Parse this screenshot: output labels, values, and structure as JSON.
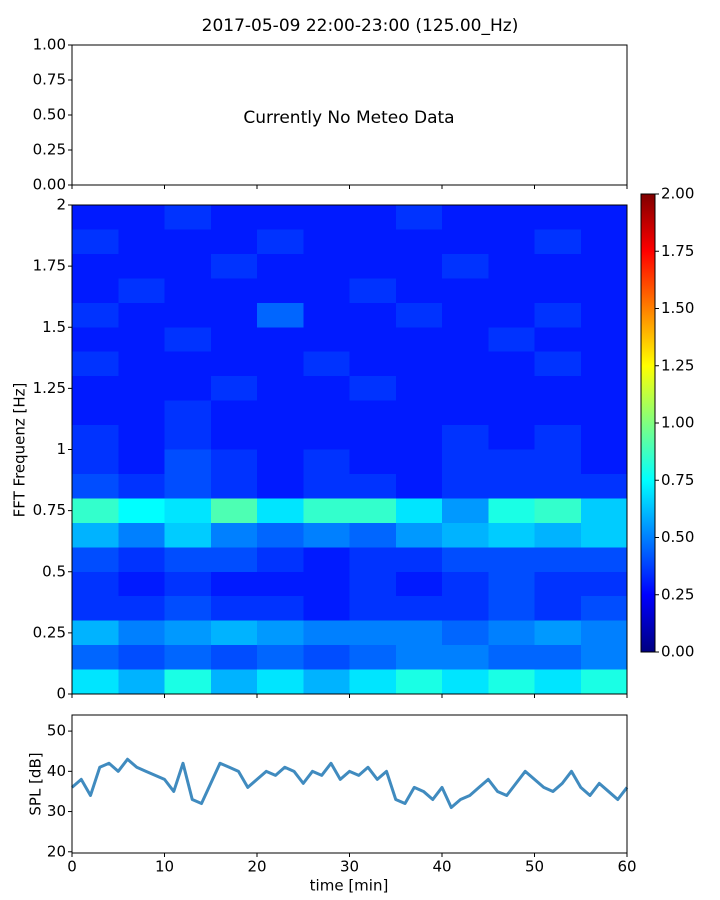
{
  "chart_data": [
    {
      "type": "empty",
      "title": "2017-05-09 22:00-23:00 (125.00_Hz)",
      "annotation": "Currently No Meteo Data",
      "ylim": [
        0,
        1
      ],
      "yticks": [
        {
          "value": 0,
          "label": "0.00"
        },
        {
          "value": 0.25,
          "label": "0.25"
        },
        {
          "value": 0.5,
          "label": "0.50"
        },
        {
          "value": 0.75,
          "label": "0.75"
        },
        {
          "value": 1,
          "label": "1.00"
        }
      ]
    },
    {
      "type": "heatmap",
      "ylabel": "FFT Frequenz [Hz]",
      "colormap": "jet",
      "x": [
        0,
        5,
        10,
        15,
        20,
        25,
        30,
        35,
        40,
        45,
        50,
        55,
        60
      ],
      "y": [
        0,
        0.1,
        0.2,
        0.3,
        0.4,
        0.5,
        0.6,
        0.7,
        0.8,
        0.9,
        1.0,
        1.1,
        1.2,
        1.3,
        1.4,
        1.5,
        1.6,
        1.7,
        1.8,
        1.9,
        2.0
      ],
      "values": [
        [
          0.7,
          0.6,
          0.8,
          0.6,
          0.7,
          0.6,
          0.7,
          0.8,
          0.7,
          0.8,
          0.7,
          0.8
        ],
        [
          0.45,
          0.4,
          0.45,
          0.4,
          0.45,
          0.4,
          0.45,
          0.5,
          0.5,
          0.45,
          0.45,
          0.5
        ],
        [
          0.6,
          0.5,
          0.55,
          0.6,
          0.55,
          0.5,
          0.5,
          0.5,
          0.45,
          0.5,
          0.55,
          0.5
        ],
        [
          0.35,
          0.35,
          0.4,
          0.35,
          0.35,
          0.3,
          0.35,
          0.35,
          0.35,
          0.4,
          0.35,
          0.4
        ],
        [
          0.35,
          0.3,
          0.35,
          0.3,
          0.3,
          0.3,
          0.35,
          0.3,
          0.35,
          0.4,
          0.35,
          0.35
        ],
        [
          0.4,
          0.35,
          0.4,
          0.4,
          0.35,
          0.3,
          0.35,
          0.35,
          0.4,
          0.4,
          0.4,
          0.4
        ],
        [
          0.6,
          0.5,
          0.65,
          0.5,
          0.45,
          0.5,
          0.45,
          0.55,
          0.6,
          0.65,
          0.6,
          0.65
        ],
        [
          0.85,
          0.75,
          0.7,
          0.9,
          0.7,
          0.85,
          0.85,
          0.7,
          0.55,
          0.8,
          0.85,
          0.65
        ],
        [
          0.4,
          0.35,
          0.4,
          0.35,
          0.3,
          0.35,
          0.35,
          0.3,
          0.35,
          0.35,
          0.35,
          0.35
        ],
        [
          0.35,
          0.3,
          0.4,
          0.35,
          0.3,
          0.35,
          0.3,
          0.3,
          0.35,
          0.35,
          0.35,
          0.3
        ],
        [
          0.35,
          0.3,
          0.35,
          0.3,
          0.3,
          0.3,
          0.3,
          0.3,
          0.35,
          0.3,
          0.35,
          0.3
        ],
        [
          0.3,
          0.3,
          0.35,
          0.3,
          0.3,
          0.3,
          0.3,
          0.3,
          0.3,
          0.3,
          0.3,
          0.3
        ],
        [
          0.3,
          0.3,
          0.3,
          0.35,
          0.3,
          0.3,
          0.35,
          0.3,
          0.3,
          0.3,
          0.3,
          0.3
        ],
        [
          0.35,
          0.3,
          0.3,
          0.3,
          0.3,
          0.35,
          0.3,
          0.3,
          0.3,
          0.3,
          0.35,
          0.3
        ],
        [
          0.3,
          0.3,
          0.35,
          0.3,
          0.3,
          0.3,
          0.3,
          0.3,
          0.3,
          0.35,
          0.3,
          0.3
        ],
        [
          0.35,
          0.3,
          0.3,
          0.3,
          0.45,
          0.3,
          0.3,
          0.35,
          0.3,
          0.3,
          0.35,
          0.3
        ],
        [
          0.3,
          0.35,
          0.3,
          0.3,
          0.3,
          0.3,
          0.35,
          0.3,
          0.3,
          0.3,
          0.3,
          0.3
        ],
        [
          0.3,
          0.3,
          0.3,
          0.35,
          0.3,
          0.3,
          0.3,
          0.3,
          0.35,
          0.3,
          0.3,
          0.3
        ],
        [
          0.35,
          0.3,
          0.3,
          0.3,
          0.35,
          0.3,
          0.3,
          0.3,
          0.3,
          0.3,
          0.35,
          0.3
        ],
        [
          0.3,
          0.3,
          0.35,
          0.3,
          0.3,
          0.3,
          0.3,
          0.35,
          0.3,
          0.3,
          0.3,
          0.3
        ]
      ],
      "ylim": [
        0,
        2
      ],
      "yticks": [
        0,
        0.25,
        0.5,
        0.75,
        1,
        1.25,
        1.5,
        1.75,
        2
      ],
      "clim": [
        0,
        2
      ],
      "cticks": [
        {
          "value": 0,
          "label": "0.00"
        },
        {
          "value": 0.25,
          "label": "0.25"
        },
        {
          "value": 0.5,
          "label": "0.50"
        },
        {
          "value": 0.75,
          "label": "0.75"
        },
        {
          "value": 1,
          "label": "1.00"
        },
        {
          "value": 1.25,
          "label": "1.25"
        },
        {
          "value": 1.5,
          "label": "1.50"
        },
        {
          "value": 1.75,
          "label": "1.75"
        },
        {
          "value": 2,
          "label": "2.00"
        }
      ]
    },
    {
      "type": "line",
      "xlabel": "time [min]",
      "ylabel": "SPL [dB]",
      "color": "#1f77b4",
      "x": [
        0,
        1,
        2,
        3,
        4,
        5,
        6,
        7,
        8,
        9,
        10,
        11,
        12,
        13,
        14,
        15,
        16,
        17,
        18,
        19,
        20,
        21,
        22,
        23,
        24,
        25,
        26,
        27,
        28,
        29,
        30,
        31,
        32,
        33,
        34,
        35,
        36,
        37,
        38,
        39,
        40,
        41,
        42,
        43,
        44,
        45,
        46,
        47,
        48,
        49,
        50,
        51,
        52,
        53,
        54,
        55,
        56,
        57,
        58,
        59,
        60
      ],
      "values": [
        36,
        38,
        34,
        41,
        42,
        40,
        43,
        41,
        40,
        39,
        38,
        35,
        42,
        33,
        32,
        37,
        42,
        41,
        40,
        36,
        38,
        40,
        39,
        41,
        40,
        37,
        40,
        39,
        42,
        38,
        40,
        39,
        41,
        38,
        40,
        33,
        32,
        36,
        35,
        33,
        36,
        31,
        33,
        34,
        36,
        38,
        35,
        34,
        37,
        40,
        38,
        36,
        35,
        37,
        40,
        36,
        34,
        37,
        35,
        33,
        36
      ],
      "xlim": [
        0,
        60
      ],
      "xticks": [
        0,
        10,
        20,
        30,
        40,
        50,
        60
      ],
      "ylim": [
        19.7,
        54
      ],
      "yticks": [
        20,
        30,
        40,
        50
      ]
    }
  ]
}
